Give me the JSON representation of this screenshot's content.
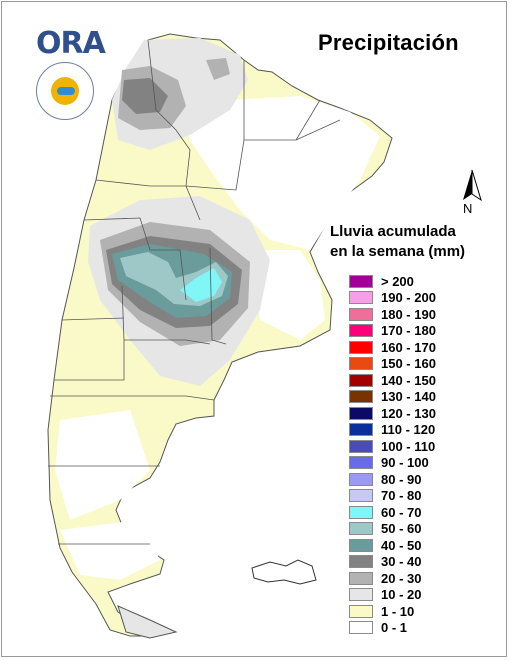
{
  "title": "Precipitación",
  "logo": {
    "text": "ORA",
    "seal_text": ""
  },
  "north_label": "N",
  "legend": {
    "title_line1": "Lluvia acumulada",
    "title_line2": "en la semana (mm)",
    "items": [
      {
        "label": "> 200",
        "color": "#a0009a"
      },
      {
        "label": "190 - 200",
        "color": "#f7a0e8"
      },
      {
        "label": "180 - 190",
        "color": "#f06f9a"
      },
      {
        "label": "170 - 180",
        "color": "#ff007a"
      },
      {
        "label": "160 - 170",
        "color": "#ff0000"
      },
      {
        "label": "150 - 160",
        "color": "#e84a12"
      },
      {
        "label": "140 - 150",
        "color": "#a50000"
      },
      {
        "label": "130 - 140",
        "color": "#7a3300"
      },
      {
        "label": "120 - 130",
        "color": "#0b0a64"
      },
      {
        "label": "110 - 120",
        "color": "#0a2f9a"
      },
      {
        "label": "100 - 110",
        "color": "#4a4ab8"
      },
      {
        "label": "90 - 100",
        "color": "#6a6aee"
      },
      {
        "label": "80 - 90",
        "color": "#9a9af2"
      },
      {
        "label": "70 - 80",
        "color": "#c8c8f4"
      },
      {
        "label": "60 - 70",
        "color": "#80f6f6"
      },
      {
        "label": "50 - 60",
        "color": "#9ec8c8"
      },
      {
        "label": "40 - 50",
        "color": "#6a9c9c"
      },
      {
        "label": "30 - 40",
        "color": "#828282"
      },
      {
        "label": "20 - 30",
        "color": "#b2b2b2"
      },
      {
        "label": "10 - 20",
        "color": "#e6e6e6"
      },
      {
        "label": "1 - 10",
        "color": "#fafac8"
      },
      {
        "label": "0 - 1",
        "color": "#ffffff"
      }
    ]
  }
}
